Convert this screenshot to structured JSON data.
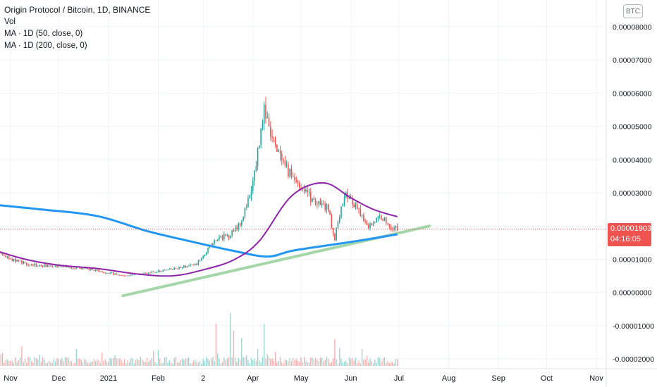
{
  "legend": {
    "title": "Origin Protocol / Bitcoin, 1D, BINANCE",
    "vol": "Vol",
    "ma50": "MA · 1D (50, close, 0)",
    "ma200": "MA · 1D (200, close, 0)"
  },
  "currency_badge": "BTC",
  "last_price": {
    "value": "0.00001903",
    "countdown": "04:16:05"
  },
  "colors": {
    "up": "#26a69a",
    "down": "#ef5350",
    "ma50": "#8e24aa",
    "ma200": "#2196f3",
    "trendline": "#a5d6a7"
  },
  "chart_data": {
    "type": "candlestick",
    "symbol": "Origin Protocol / Bitcoin",
    "interval": "1D",
    "exchange": "BINANCE",
    "x_ticks": [
      "Nov",
      "Dec",
      "2021",
      "Feb",
      "2",
      "Apr",
      "May",
      "Jun",
      "Jul",
      "Aug",
      "Sep",
      "Oct",
      "Nov"
    ],
    "y_ticks": [
      "0.00008000",
      "0.00007000",
      "0.00006000",
      "0.00005000",
      "0.00004000",
      "0.00003000",
      "0.00002000",
      "0.00001000",
      "0.00000000",
      "-0.00001000",
      "-0.00002000"
    ],
    "ylim": [
      -2.1e-05,
      8.85e-05
    ],
    "grid": true,
    "price_path": [
      [
        "2020-10-20",
        1.28e-05
      ],
      [
        "2020-11-01",
        1e-05
      ],
      [
        "2020-11-15",
        8.2e-06
      ],
      [
        "2020-12-01",
        8e-06
      ],
      [
        "2020-12-20",
        7e-06
      ],
      [
        "2021-01-10",
        5e-06
      ],
      [
        "2021-01-25",
        5.8e-06
      ],
      [
        "2021-02-10",
        7e-06
      ],
      [
        "2021-02-25",
        8.5e-06
      ],
      [
        "2021-03-05",
        1.4e-05
      ],
      [
        "2021-03-10",
        1.6e-05
      ],
      [
        "2021-03-18",
        1.75e-05
      ],
      [
        "2021-03-25",
        2.2e-05
      ],
      [
        "2021-03-31",
        3e-05
      ],
      [
        "2021-04-08",
        5.5e-05
      ],
      [
        "2021-04-12",
        4.7e-05
      ],
      [
        "2021-04-20",
        3.8e-05
      ],
      [
        "2021-05-01",
        3.2e-05
      ],
      [
        "2021-05-10",
        2.7e-05
      ],
      [
        "2021-05-18",
        2.5e-05
      ],
      [
        "2021-05-22",
        1.6e-05
      ],
      [
        "2021-05-28",
        3e-05
      ],
      [
        "2021-06-05",
        2.5e-05
      ],
      [
        "2021-06-12",
        2e-05
      ],
      [
        "2021-06-20",
        2.3e-05
      ],
      [
        "2021-06-25",
        2e-05
      ],
      [
        "2021-06-30",
        1.9e-05
      ]
    ],
    "ma50": [
      [
        "2020-10-20",
        1.3e-05
      ],
      [
        "2020-11-10",
        1e-05
      ],
      [
        "2020-12-01",
        8.2e-06
      ],
      [
        "2020-12-25",
        7.2e-06
      ],
      [
        "2021-01-20",
        5.5e-06
      ],
      [
        "2021-02-10",
        5e-06
      ],
      [
        "2021-03-01",
        6.8e-06
      ],
      [
        "2021-03-20",
        9.8e-06
      ],
      [
        "2021-04-05",
        1.55e-05
      ],
      [
        "2021-04-25",
        2.9e-05
      ],
      [
        "2021-05-15",
        3.3e-05
      ],
      [
        "2021-06-01",
        2.85e-05
      ],
      [
        "2021-06-15",
        2.5e-05
      ],
      [
        "2021-06-30",
        2.28e-05
      ]
    ],
    "ma200": [
      [
        "2020-10-20",
        2.65e-05
      ],
      [
        "2020-11-20",
        2.5e-05
      ],
      [
        "2020-12-25",
        2.3e-05
      ],
      [
        "2021-01-25",
        1.85e-05
      ],
      [
        "2021-02-20",
        1.55e-05
      ],
      [
        "2021-03-20",
        1.25e-05
      ],
      [
        "2021-04-10",
        1.08e-05
      ],
      [
        "2021-04-25",
        1.25e-05
      ],
      [
        "2021-05-15",
        1.4e-05
      ],
      [
        "2021-06-05",
        1.55e-05
      ],
      [
        "2021-06-30",
        1.75e-05
      ]
    ],
    "trendline": [
      [
        "2021-01-10",
        -1e-06
      ],
      [
        "2021-07-20",
        2e-05
      ]
    ],
    "volume_peaks": [
      [
        "2021-03-09",
        0.6
      ],
      [
        "2021-03-18",
        0.75
      ],
      [
        "2021-03-20",
        0.5
      ],
      [
        "2021-03-25",
        0.4
      ],
      [
        "2021-04-08",
        0.45
      ],
      [
        "2021-05-22",
        0.38
      ]
    ]
  }
}
